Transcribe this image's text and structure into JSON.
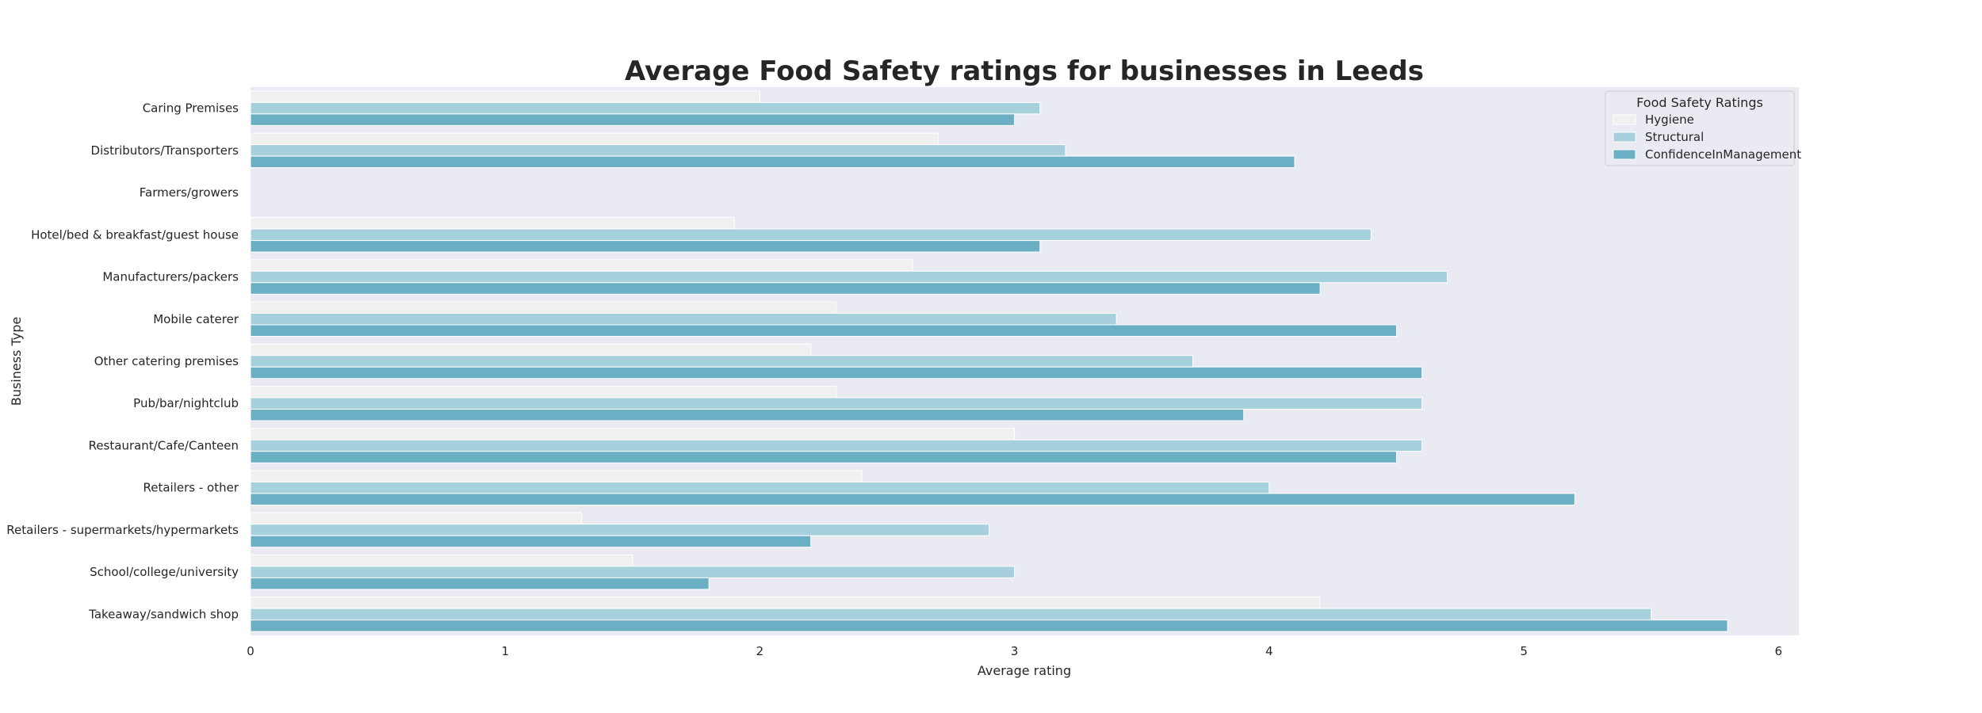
{
  "chart_data": {
    "type": "bar",
    "orientation": "horizontal",
    "title": "Average Food Safety ratings for businesses in Leeds",
    "xlabel": "Average rating",
    "ylabel": "Business Type",
    "xlim": [
      0,
      6.08
    ],
    "xticks": [
      "0",
      "1",
      "2",
      "3",
      "4",
      "5",
      "6"
    ],
    "grid": false,
    "legend": {
      "title": "Food Safety Ratings",
      "placement": "top-right"
    },
    "categories": [
      "Caring Premises",
      "Distributors/Transporters",
      "Farmers/growers",
      "Hotel/bed & breakfast/guest house",
      "Manufacturers/packers",
      "Mobile caterer",
      "Other catering premises",
      "Pub/bar/nightclub",
      "Restaurant/Cafe/Canteen",
      "Retailers - other",
      "Retailers - supermarkets/hypermarkets",
      "School/college/university",
      "Takeaway/sandwich shop"
    ],
    "series": [
      {
        "name": "Hygiene",
        "color": "#f0f0f0",
        "values": [
          2.0,
          2.7,
          0,
          1.9,
          2.6,
          2.3,
          2.2,
          2.3,
          3.0,
          2.4,
          1.3,
          1.5,
          4.2
        ]
      },
      {
        "name": "Structural",
        "color": "#a6d0dc",
        "values": [
          3.1,
          3.2,
          0,
          4.4,
          4.7,
          3.4,
          3.7,
          4.6,
          4.6,
          4.0,
          2.9,
          3.0,
          5.5
        ]
      },
      {
        "name": "ConfidenceInManagement",
        "color": "#6aafc4",
        "values": [
          3.0,
          4.1,
          0,
          3.1,
          4.2,
          4.5,
          4.6,
          3.9,
          4.5,
          5.2,
          2.2,
          1.8,
          5.8
        ]
      }
    ]
  },
  "colors": {
    "plot_background": "#eaeaf2",
    "bar_edge": "#ffffff",
    "text": "#262626"
  }
}
